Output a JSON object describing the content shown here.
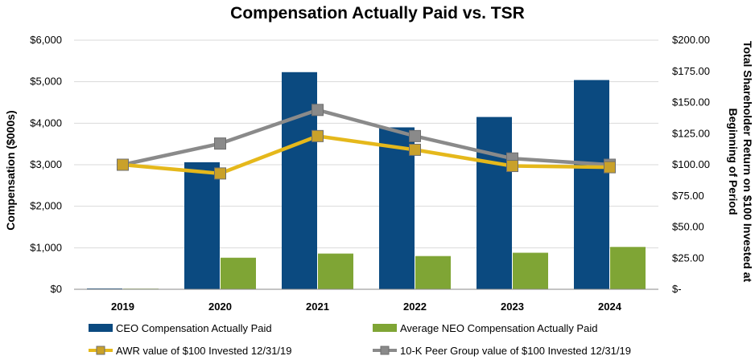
{
  "chart_data": {
    "type": "bar",
    "title": "Compensation Actually Paid vs. TSR",
    "ylabel": "Compensation ($000s)",
    "y2label_line1": "Total Shareholder Return on $100 Invested at",
    "y2label_line2": "Beginning of Period",
    "categories": [
      "2019",
      "2020",
      "2021",
      "2022",
      "2023",
      "2024"
    ],
    "ylim": [
      0,
      6000
    ],
    "y_ticks": [
      "$0",
      "$1,000",
      "$2,000",
      "$3,000",
      "$4,000",
      "$5,000",
      "$6,000"
    ],
    "y2lim": [
      0,
      200
    ],
    "y2_ticks": [
      "$-",
      "$25.00",
      "$50.00",
      "$75.00",
      "$100.00",
      "$125.00",
      "$150.00",
      "$175.00",
      "$200.00"
    ],
    "bar_series": [
      {
        "name": "CEO Compensation Actually Paid",
        "color": "#0b4a80",
        "values": [
          20,
          3060,
          5230,
          3900,
          4150,
          5040
        ]
      },
      {
        "name": "Average NEO Compensation Actually Paid",
        "color": "#7fa535",
        "values": [
          15,
          760,
          860,
          800,
          880,
          1020
        ]
      }
    ],
    "line_series": [
      {
        "name": "AWR value of $100 Invested 12/31/19",
        "color": "#e5b81b",
        "marker": "#c9a12a",
        "values": [
          100,
          93,
          123,
          112,
          99,
          98
        ]
      },
      {
        "name": "10-K Peer Group value of $100 Invested 12/31/19",
        "color": "#8a8a8a",
        "marker": "#8a8a8a",
        "values": [
          100,
          117,
          144,
          123,
          105,
          100
        ]
      }
    ],
    "grid": true,
    "legend_position": "bottom"
  }
}
